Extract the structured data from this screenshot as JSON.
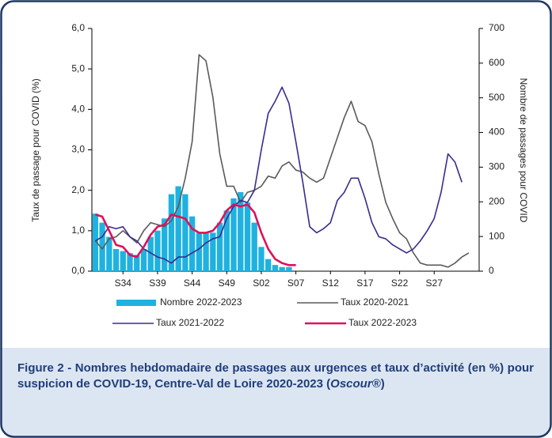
{
  "chart_data": {
    "type": "bar-line",
    "categories": [
      null,
      null,
      null,
      null,
      "S34",
      null,
      null,
      null,
      null,
      "S39",
      null,
      null,
      null,
      null,
      "S44",
      null,
      null,
      null,
      null,
      "S49",
      null,
      null,
      null,
      null,
      "S02",
      null,
      null,
      null,
      null,
      "S07",
      null,
      null,
      null,
      null,
      "S12",
      null,
      null,
      null,
      null,
      "S17",
      null,
      null,
      null,
      null,
      "S22",
      null,
      null,
      null,
      null,
      "S27",
      null,
      null,
      null,
      null,
      null,
      null
    ],
    "series": [
      {
        "name": "Nombre 2022-2023",
        "kind": "bar",
        "axis": "y2",
        "color": "#1fb2e0",
        "values": [
          166,
          140,
          99,
          64,
          58,
          52,
          47,
          64,
          99,
          117,
          152,
          222,
          245,
          222,
          158,
          111,
          111,
          111,
          140,
          175,
          210,
          228,
          198,
          140,
          70,
          35,
          18,
          12,
          12,
          null,
          null,
          null,
          null,
          null,
          null,
          null,
          null,
          null,
          null,
          null,
          null,
          null,
          null,
          null,
          null,
          null,
          null,
          null,
          null,
          null,
          null,
          null,
          null,
          null,
          null,
          null
        ]
      },
      {
        "name": "Taux 2020-2021",
        "kind": "line",
        "color": "#5a5a5a",
        "values": [
          0.75,
          0.55,
          0.8,
          0.85,
          1.0,
          0.85,
          0.7,
          1.0,
          1.2,
          1.15,
          1.1,
          1.25,
          1.6,
          2.3,
          3.2,
          5.35,
          5.2,
          4.3,
          2.9,
          2.1,
          2.1,
          1.7,
          1.95,
          2.0,
          2.1,
          2.35,
          2.3,
          2.6,
          2.7,
          2.5,
          2.45,
          2.3,
          2.2,
          2.3,
          2.8,
          3.3,
          3.8,
          4.2,
          3.7,
          3.6,
          3.2,
          2.4,
          1.7,
          1.3,
          0.95,
          0.8,
          0.45,
          0.2,
          0.15,
          0.15,
          0.15,
          0.1,
          0.2,
          0.35,
          0.45,
          null
        ]
      },
      {
        "name": "Taux 2021-2022",
        "kind": "line",
        "color": "#3b2a8f",
        "values": [
          0.75,
          0.85,
          1.1,
          1.05,
          1.1,
          0.85,
          0.75,
          0.55,
          0.45,
          0.35,
          0.3,
          0.2,
          0.35,
          0.35,
          0.45,
          0.55,
          0.7,
          0.8,
          0.85,
          1.3,
          1.6,
          1.75,
          1.7,
          2.0,
          3.0,
          3.9,
          4.2,
          4.55,
          4.15,
          3.2,
          2.2,
          1.1,
          0.95,
          1.05,
          1.2,
          1.75,
          1.95,
          2.3,
          2.3,
          1.8,
          1.2,
          0.85,
          0.8,
          0.65,
          0.55,
          0.45,
          0.55,
          0.75,
          1.0,
          1.3,
          1.95,
          2.9,
          2.7,
          2.2,
          null,
          null
        ]
      },
      {
        "name": "Taux 2022-2023",
        "kind": "line",
        "color": "#e0105a",
        "values": [
          1.4,
          1.35,
          1.0,
          0.65,
          0.6,
          0.4,
          0.35,
          0.6,
          0.9,
          1.1,
          1.15,
          1.4,
          1.35,
          1.3,
          1.05,
          0.95,
          0.95,
          1.0,
          1.2,
          1.5,
          1.65,
          1.6,
          1.65,
          1.45,
          0.95,
          0.55,
          0.3,
          0.2,
          0.15,
          0.15,
          null,
          null,
          null,
          null,
          null,
          null,
          null,
          null,
          null,
          null,
          null,
          null,
          null,
          null,
          null,
          null,
          null,
          null,
          null,
          null,
          null,
          null,
          null,
          null,
          null,
          null
        ]
      }
    ],
    "ylabel": "Taux de passage pour COVID (%)",
    "y2label": "Nombre de passages pour COVID",
    "ylim": [
      0,
      6
    ],
    "yticks": [
      {
        "value": 0,
        "label": "0,0"
      },
      {
        "value": 1,
        "label": "1,0"
      },
      {
        "value": 2,
        "label": "2,0"
      },
      {
        "value": 3,
        "label": "3,0"
      },
      {
        "value": 4,
        "label": "4,0"
      },
      {
        "value": 5,
        "label": "5,0"
      },
      {
        "value": 6,
        "label": "6,0"
      }
    ],
    "y2lim": [
      0,
      700
    ],
    "y2ticks": [
      0,
      100,
      200,
      300,
      400,
      500,
      600,
      700
    ],
    "grid": false
  },
  "caption": {
    "text": "Figure 2 - Nombres hebdomadaire de passages aux urgences et taux d’activité (en %) pour suspicion de COVID-19, Centre-Val de Loire 2020-2023 (",
    "source": "Oscour®",
    "end": ")"
  }
}
